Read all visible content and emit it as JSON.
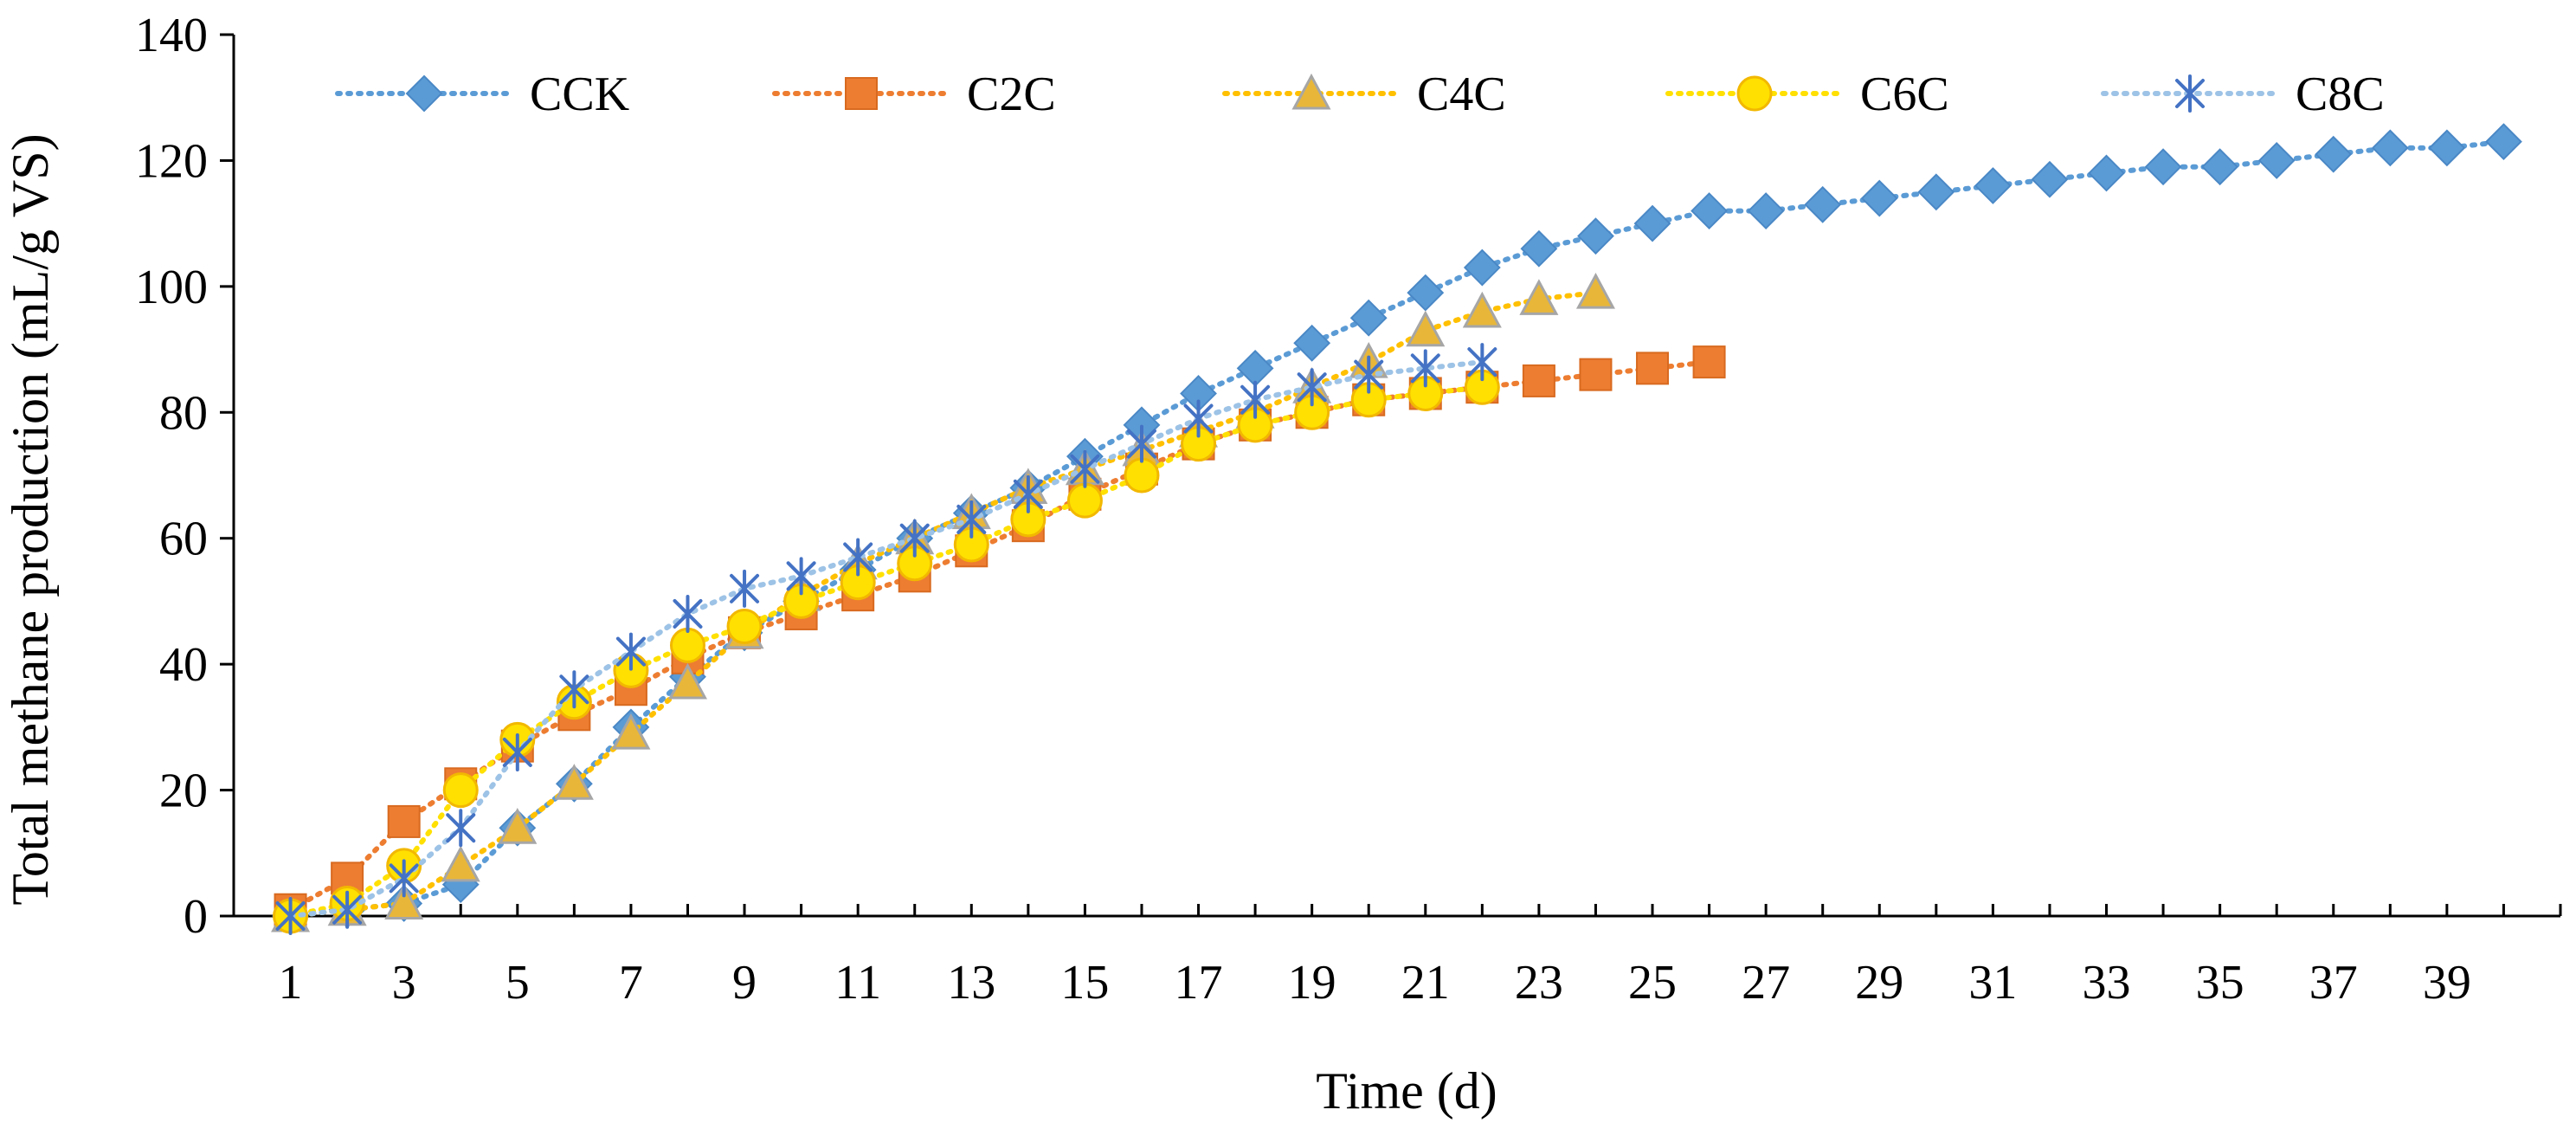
{
  "chart_data": {
    "type": "line",
    "title": "",
    "xlabel": "Time (d)",
    "ylabel": "Total methane production  (mL/g VS)",
    "xlim": [
      0,
      41
    ],
    "ylim": [
      0,
      140
    ],
    "x_ticks": [
      1,
      3,
      5,
      7,
      9,
      11,
      13,
      15,
      17,
      19,
      21,
      23,
      25,
      27,
      29,
      31,
      33,
      35,
      37,
      39
    ],
    "x_tick_labels": [
      "1",
      "3",
      "5",
      "7",
      "9",
      "11",
      "13",
      "15",
      "17",
      "19",
      "21",
      "23",
      "25",
      "27",
      "29",
      "31",
      "33",
      "35",
      "37",
      "39"
    ],
    "y_ticks": [
      0,
      20,
      40,
      60,
      80,
      100,
      120,
      140
    ],
    "y_tick_labels": [
      "0",
      "20",
      "40",
      "60",
      "80",
      "100",
      "120",
      "140"
    ],
    "grid": false,
    "legend_position": "top",
    "series": [
      {
        "name": "CCK",
        "marker": "diamond",
        "color": "#5B9BD5",
        "line_color": "#5B9BD5",
        "x": [
          1,
          2,
          3,
          4,
          5,
          6,
          7,
          8,
          9,
          10,
          11,
          12,
          13,
          14,
          15,
          16,
          17,
          18,
          19,
          20,
          21,
          22,
          23,
          24,
          25,
          26,
          27,
          28,
          29,
          30,
          31,
          32,
          33,
          34,
          35,
          36,
          37,
          38,
          39,
          40
        ],
        "values": [
          0,
          1,
          2,
          5,
          14,
          21,
          30,
          38,
          45,
          50,
          55,
          60,
          64,
          68,
          73,
          78,
          83,
          87,
          91,
          95,
          99,
          103,
          106,
          108,
          110,
          112,
          112,
          113,
          114,
          115,
          116,
          117,
          118,
          119,
          119,
          120,
          121,
          122,
          122,
          123
        ]
      },
      {
        "name": "C2C",
        "marker": "square",
        "color": "#ED7D31",
        "line_color": "#ED7D31",
        "x": [
          1,
          2,
          3,
          4,
          5,
          6,
          7,
          8,
          9,
          10,
          11,
          12,
          13,
          14,
          15,
          16,
          17,
          18,
          19,
          20,
          21,
          22,
          23,
          24,
          25,
          26
        ],
        "values": [
          1,
          6,
          15,
          21,
          27,
          32,
          36,
          41,
          45,
          48,
          51,
          54,
          58,
          62,
          67,
          71,
          75,
          78,
          80,
          82,
          83,
          84,
          85,
          86,
          87,
          88
        ]
      },
      {
        "name": "C4C",
        "marker": "triangle",
        "color": "#E8B73A",
        "line_color": "#FFC000",
        "x": [
          1,
          2,
          3,
          4,
          5,
          6,
          7,
          8,
          9,
          10,
          11,
          12,
          13,
          14,
          15,
          16,
          17,
          18,
          19,
          20,
          21,
          22,
          23,
          24
        ],
        "values": [
          0,
          1,
          2,
          8,
          14,
          21,
          29,
          37,
          45,
          51,
          56,
          60,
          64,
          68,
          71,
          74,
          77,
          80,
          84,
          88,
          93,
          96,
          98,
          99
        ]
      },
      {
        "name": "C6C",
        "marker": "circle",
        "color": "#FFE000",
        "line_color": "#FFE000",
        "x": [
          1,
          2,
          3,
          4,
          5,
          6,
          7,
          8,
          9,
          10,
          11,
          12,
          13,
          14,
          15,
          16,
          17,
          18,
          19,
          20,
          21,
          22
        ],
        "values": [
          0,
          2,
          8,
          20,
          28,
          34,
          39,
          43,
          46,
          50,
          53,
          56,
          59,
          63,
          66,
          70,
          75,
          78,
          80,
          82,
          83,
          84
        ]
      },
      {
        "name": "C8C",
        "marker": "asterisk",
        "color": "#4472C4",
        "line_color": "#9DC3E6",
        "x": [
          1,
          2,
          3,
          4,
          5,
          6,
          7,
          8,
          9,
          10,
          11,
          12,
          13,
          14,
          15,
          16,
          17,
          18,
          19,
          20,
          21,
          22
        ],
        "values": [
          0,
          1,
          6,
          14,
          26,
          36,
          42,
          48,
          52,
          54,
          57,
          60,
          63,
          67,
          71,
          75,
          79,
          82,
          84,
          86,
          87,
          88
        ]
      }
    ]
  }
}
